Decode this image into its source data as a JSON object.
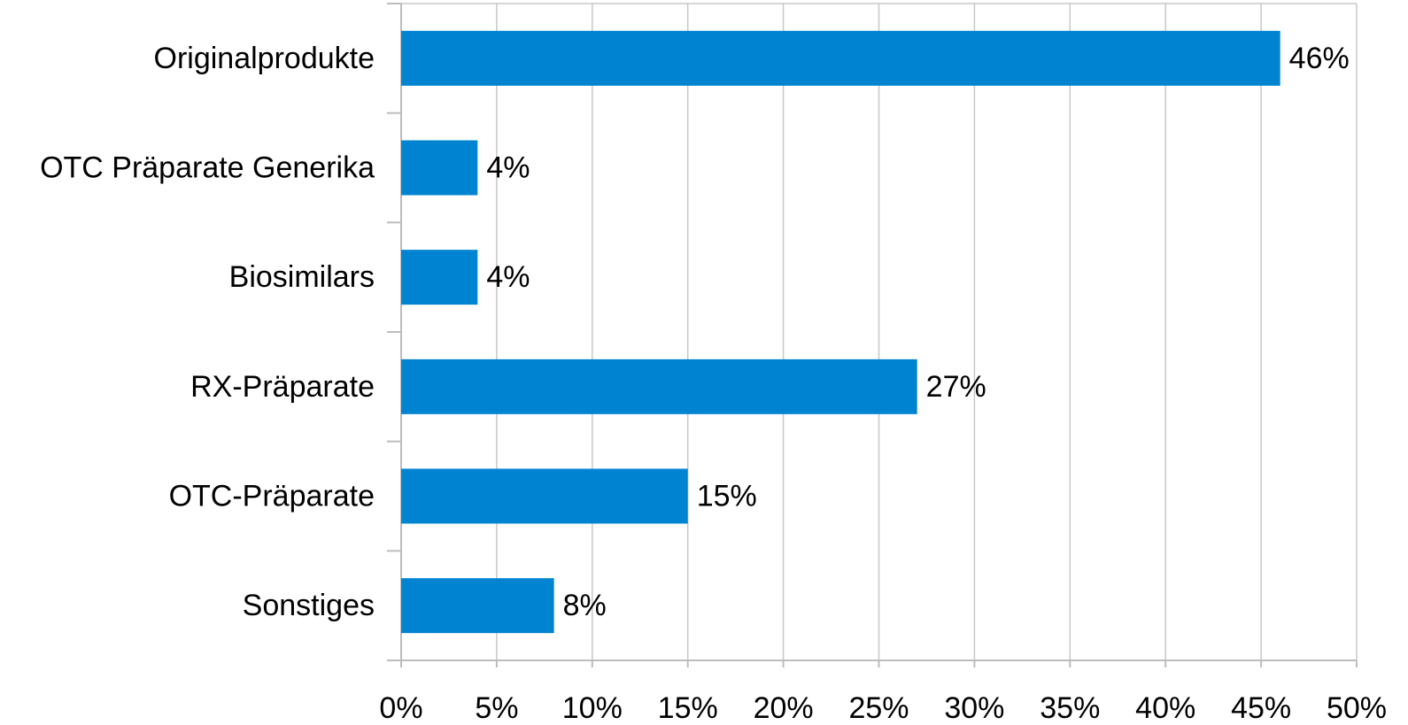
{
  "chart_data": {
    "type": "bar",
    "orientation": "horizontal",
    "title": "",
    "xlabel": "",
    "ylabel": "",
    "categories": [
      "Originalprodukte",
      "OTC Präparate Generika",
      "Biosimilars",
      "RX-Präparate",
      "OTC-Präparate",
      "Sonstiges"
    ],
    "values": [
      46,
      4,
      4,
      27,
      15,
      8
    ],
    "value_unit": "%",
    "data_labels": [
      "46%",
      "4%",
      "4%",
      "27%",
      "15%",
      "8%"
    ],
    "xlim": [
      0,
      50
    ],
    "x_ticks": [
      "0%",
      "5%",
      "10%",
      "15%",
      "20%",
      "25%",
      "30%",
      "35%",
      "40%",
      "45%",
      "50%"
    ],
    "x_tick_values": [
      0,
      5,
      10,
      15,
      20,
      25,
      30,
      35,
      40,
      45,
      50
    ],
    "grid": "vertical",
    "legend": "none",
    "colors": {
      "bar": "#0084d1",
      "grid": "#c8c8c8",
      "axis": "#bdbdbd",
      "text": "#000000"
    }
  }
}
